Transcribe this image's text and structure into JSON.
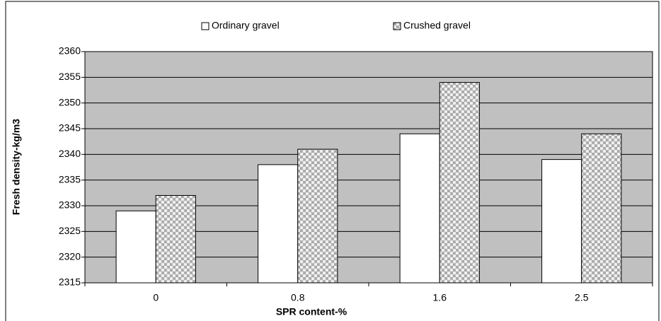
{
  "chart_data": {
    "type": "bar",
    "categories": [
      "0",
      "0.8",
      "1.6",
      "2.5"
    ],
    "series": [
      {
        "name": "Ordinary gravel",
        "color": "#ffffff",
        "values": [
          2329,
          2338,
          2344,
          2339
        ]
      },
      {
        "name": "Crushed gravel",
        "color": "#a8a8a8",
        "values": [
          2332,
          2341,
          2354,
          2344
        ]
      }
    ],
    "x_label": "SPR content-%",
    "y_label": "Fresh density-kg/m3",
    "ylim": [
      2315,
      2360
    ],
    "yticks": [
      2315,
      2320,
      2325,
      2330,
      2335,
      2340,
      2345,
      2350,
      2355,
      2360
    ],
    "grid": true,
    "legend": "top",
    "plot_background": "#c0c0c0"
  }
}
